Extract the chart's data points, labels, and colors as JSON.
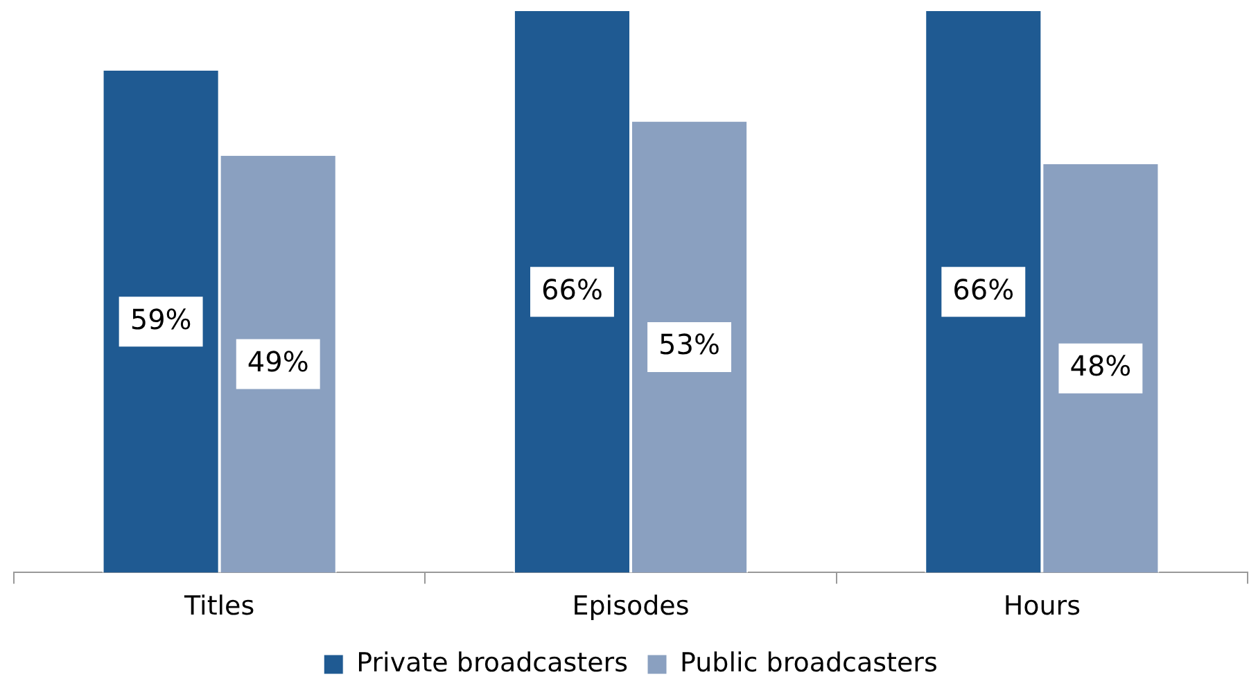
{
  "chart_data": {
    "type": "bar",
    "categories": [
      "Titles",
      "Episodes",
      "Hours"
    ],
    "series": [
      {
        "name": "Private broadcasters",
        "color": "#1f5a92",
        "values": [
          59,
          66,
          66
        ],
        "value_labels": [
          "59%",
          "66%",
          "66%"
        ]
      },
      {
        "name": "Public broadcasters",
        "color": "#8aa0c0",
        "values": [
          49,
          53,
          48
        ],
        "value_labels": [
          "49%",
          "53%",
          "48%"
        ]
      }
    ],
    "tick_labels": "x",
    "legend": "bottom",
    "grid": false
  }
}
